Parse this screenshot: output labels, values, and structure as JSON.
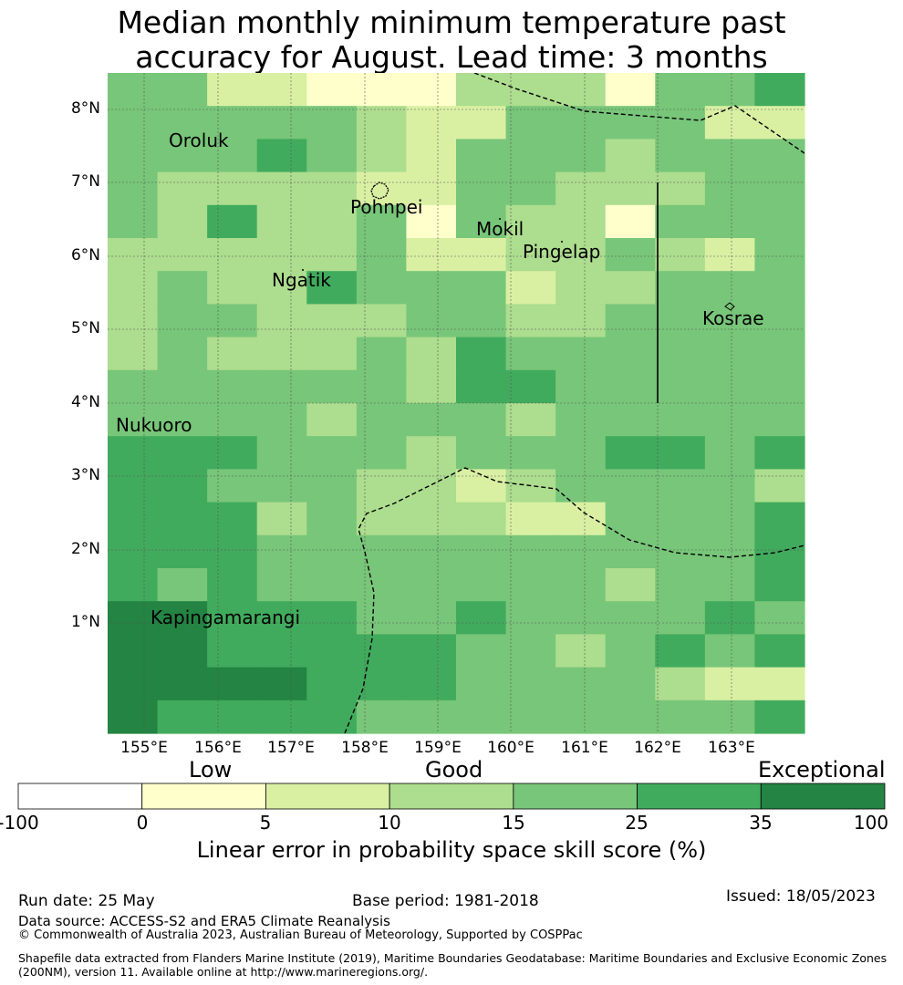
{
  "title_line1": "Median monthly minimum temperature past",
  "title_line2": "accuracy for August. Lead time: 3 months",
  "lat_labels": [
    "8°N",
    "7°N",
    "6°N",
    "5°N",
    "4°N",
    "3°N",
    "2°N",
    "1°N"
  ],
  "lon_labels": [
    "155°E",
    "156°E",
    "157°E",
    "158°E",
    "159°E",
    "160°E",
    "161°E",
    "162°E",
    "163°E"
  ],
  "places": {
    "oroluk": "Oroluk",
    "pohnpei": "Pohnpei",
    "mokil": "Mokil",
    "pingelap": "Pingelap",
    "ngatik": "Ngatik",
    "kosrae": "Kosrae",
    "nukuoro": "Nukuoro",
    "kapingamarangi": "Kapingamarangi"
  },
  "legend": {
    "categories": {
      "low": "Low",
      "good": "Good",
      "exceptional": "Exceptional"
    },
    "ticks": [
      "-100",
      "0",
      "5",
      "10",
      "15",
      "25",
      "35",
      "100"
    ],
    "colors": [
      "#ffffff",
      "#ffffcc",
      "#d9f0a3",
      "#addd8e",
      "#78c679",
      "#41ab5d",
      "#238443"
    ],
    "label": "Linear error in probability space skill score (%)"
  },
  "footer": {
    "run_date": "Run date: 25 May",
    "base_period": "Base period: 1981-2018",
    "issued": "Issued: 18/05/2023",
    "data_source": "Data source: ACCESS-S2 and ERA5 Climate Reanalysis",
    "copyright": "© Commonwealth of Australia 2023, Australian Bureau of Meteorology, Supported by COSPPac",
    "shapefile": "Shapefile data extracted from Flanders Marine Institute (2019), Maritime Boundaries Geodatabase: Maritime Boundaries and Exclusive Economic Zones (200NM), version 11. Available online at http://www.marineregions.org/."
  },
  "grid_class_rows": [
    "44221113331445",
    "44444322444422",
    "44454324443444",
    "43333224433344",
    "43533414331444",
    "33333422334324",
    "34335444233444",
    "34433344334444",
    "34333435444444",
    "44444435544444",
    "44443444344444",
    "55544434445545",
    "55444332344443",
    "55534333224445",
    "55544444444445",
    "54544444443445",
    "66555445444454",
    "66555554434545",
    "66665554444322",
    "65555444444445"
  ]
}
